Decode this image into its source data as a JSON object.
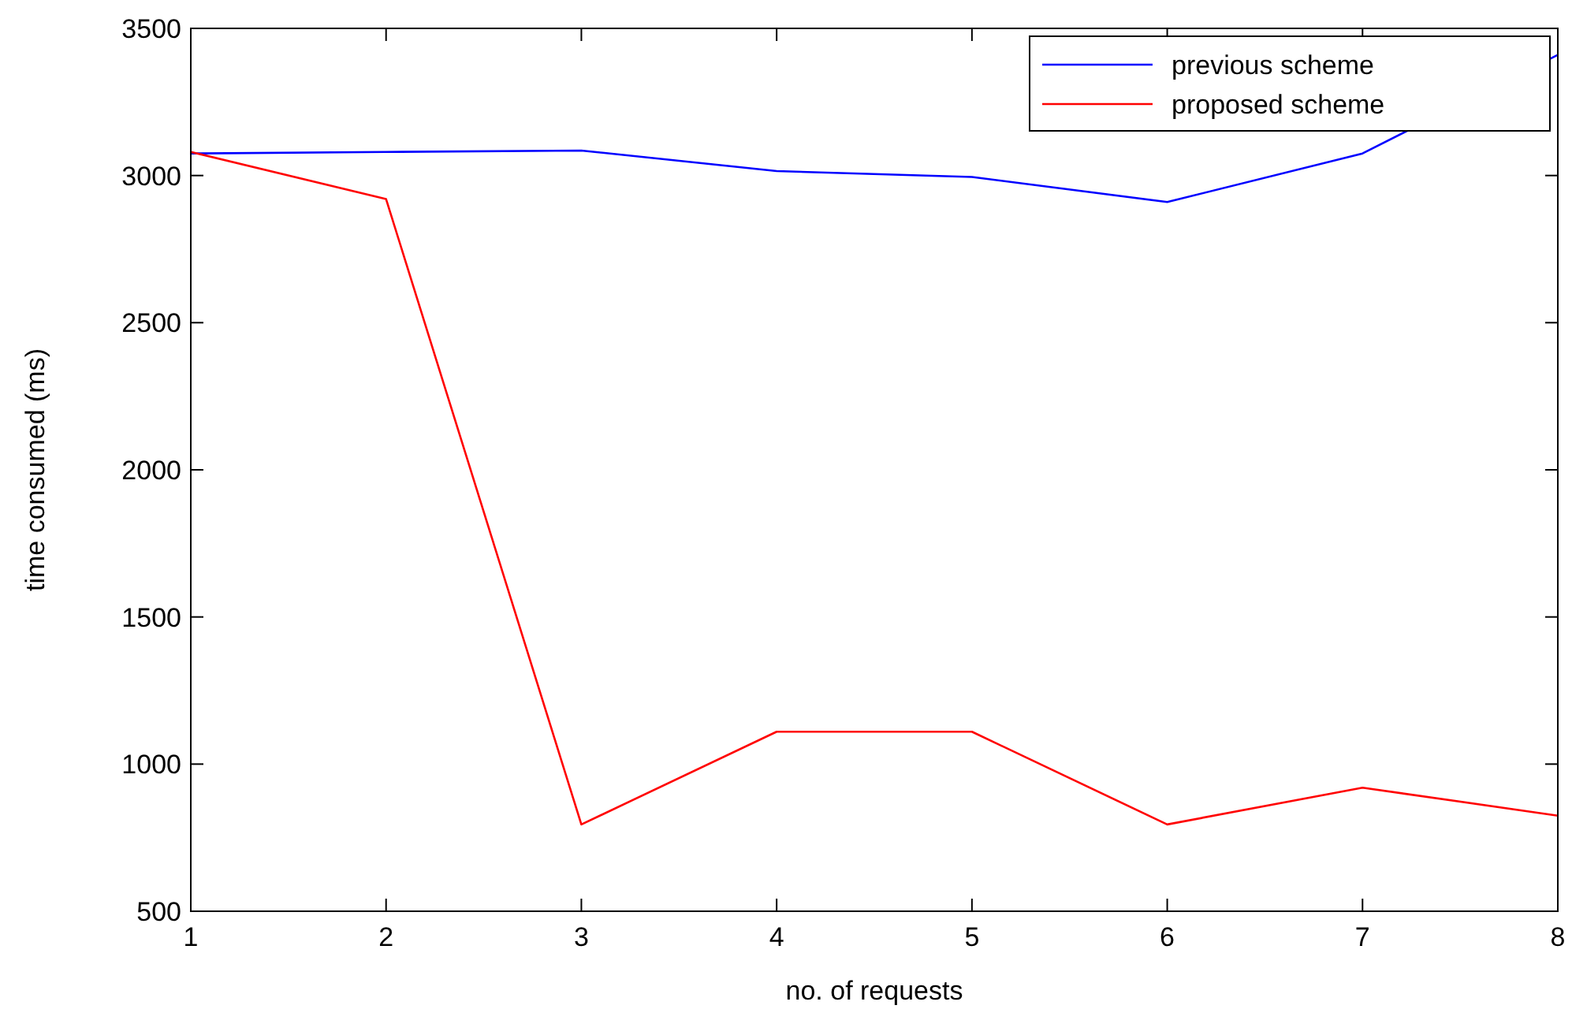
{
  "chart_data": {
    "type": "line",
    "xlabel": "no. of requests",
    "ylabel": "time consumed (ms)",
    "x": [
      1,
      2,
      3,
      4,
      5,
      6,
      7,
      8
    ],
    "series": [
      {
        "name": "previous scheme",
        "color": "#0000ff",
        "values": [
          3075,
          3080,
          3085,
          3015,
          2995,
          2910,
          3075,
          3410
        ]
      },
      {
        "name": "proposed scheme",
        "color": "#ff0000",
        "values": [
          3080,
          2920,
          795,
          1110,
          1110,
          795,
          920,
          825
        ]
      }
    ],
    "xlim": [
      1,
      8
    ],
    "xticks": [
      1,
      2,
      3,
      4,
      5,
      6,
      7,
      8
    ],
    "ylim": [
      500,
      3500
    ],
    "yticks": [
      500,
      1000,
      1500,
      2000,
      2500,
      3000,
      3500
    ],
    "grid": false,
    "legend": "top right",
    "marker": "none",
    "line_style": "solid"
  }
}
